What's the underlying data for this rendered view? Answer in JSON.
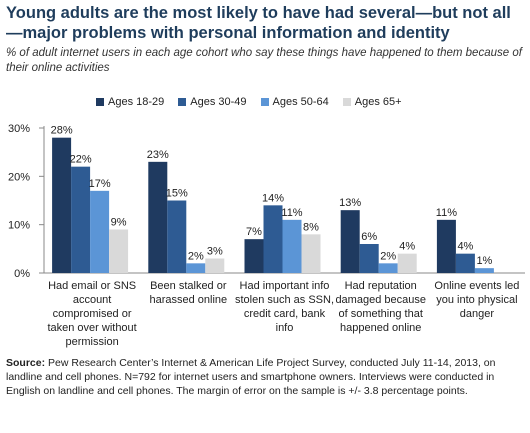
{
  "title": "Young adults are the most likely to have had several—but not all—major problems with personal information and identity",
  "subtitle": "% of adult internet users in each age cohort who say these things have happened to them because of their online activities",
  "footnote": {
    "label": "Source:",
    "text": "Pew Research Center’s Internet & American Life Project Survey, conducted July 11-14, 2013, on landline and cell phones. N=792 for internet users and smartphone owners. Interviews were conducted in English on landline and cell phones. The margin of error on the sample is +/- 3.8 percentage points."
  },
  "chart_data": {
    "type": "bar",
    "categories": [
      [
        "Had email or SNS",
        "account",
        "compromised or",
        "taken over without",
        "permission"
      ],
      [
        "Been stalked or",
        "harassed online"
      ],
      [
        "Had important info",
        "stolen such as SSN,",
        "credit card, bank",
        "info"
      ],
      [
        "Had reputation",
        "damaged because",
        "of something that",
        "happened online"
      ],
      [
        "Online events led",
        "you into physical",
        "danger"
      ]
    ],
    "series": [
      {
        "name": "Ages 18-29",
        "color": "#1f3a60",
        "values": [
          28,
          23,
          7,
          13,
          11
        ]
      },
      {
        "name": "Ages 30-49",
        "color": "#2e5b93",
        "values": [
          22,
          15,
          14,
          6,
          4
        ]
      },
      {
        "name": "Ages 50-64",
        "color": "#5b95d6",
        "values": [
          17,
          2,
          11,
          2,
          1
        ]
      },
      {
        "name": "Ages 65+",
        "color": "#d9d9d9",
        "values": [
          9,
          3,
          8,
          4,
          null
        ]
      }
    ],
    "value_suffix": "%",
    "yticks": [
      0,
      10,
      20,
      30
    ],
    "ytick_labels": [
      "0%",
      "10%",
      "20%",
      "30%"
    ],
    "ylim": [
      0,
      30
    ],
    "legend_position": "top",
    "grid": false
  }
}
